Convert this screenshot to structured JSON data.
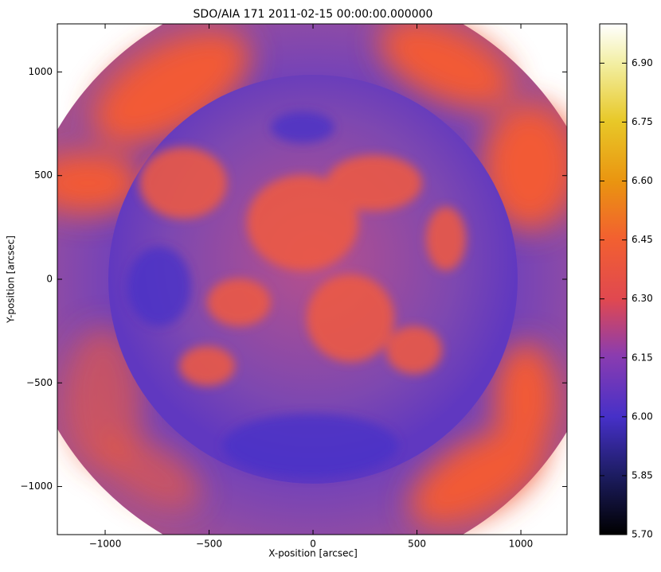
{
  "chart_data": {
    "type": "image",
    "title": "SDO/AIA 171 2011-02-15 00:00:00.000000",
    "xlabel": "X-position [arcsec]",
    "ylabel": "Y-position [arcsec]",
    "xlim": [
      -1230,
      1222
    ],
    "ylim": [
      -1232,
      1232
    ],
    "xticks": [
      {
        "value": -1000,
        "label": "−1000"
      },
      {
        "value": -500,
        "label": "−500"
      },
      0,
      500,
      1000
    ],
    "yticks": [
      {
        "value": -1000,
        "label": "−1000"
      },
      {
        "value": -500,
        "label": "−500"
      },
      0,
      500,
      1000
    ],
    "colorbar": {
      "lim": [
        5.7,
        7.0
      ],
      "ticks": [
        {
          "value": 5.7,
          "label": "5.70"
        },
        {
          "value": 5.85,
          "label": "5.85"
        },
        {
          "value": 6.0,
          "label": "6.00"
        },
        {
          "value": 6.15,
          "label": "6.15"
        },
        {
          "value": 6.3,
          "label": "6.30"
        },
        {
          "value": 6.45,
          "label": "6.45"
        },
        {
          "value": 6.6,
          "label": "6.60"
        },
        {
          "value": 6.75,
          "label": "6.75"
        },
        {
          "value": 6.9,
          "label": "6.90"
        }
      ]
    }
  }
}
